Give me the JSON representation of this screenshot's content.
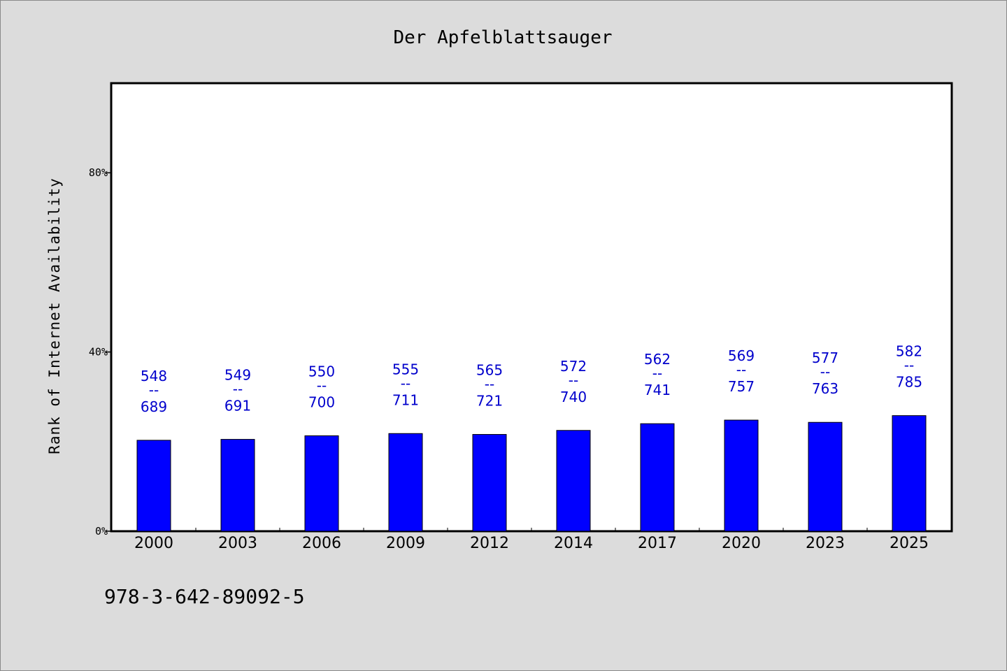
{
  "chart_data": {
    "type": "bar",
    "title": "Der Apfelblattsauger",
    "ylabel": "Rank of Internet Availability",
    "xlabel": "",
    "categories": [
      "2000",
      "2003",
      "2006",
      "2009",
      "2012",
      "2014",
      "2017",
      "2020",
      "2023",
      "2025"
    ],
    "values": [
      20.3,
      20.5,
      21.3,
      21.8,
      21.6,
      22.5,
      24.0,
      24.8,
      24.3,
      25.8
    ],
    "data_labels": [
      [
        "548",
        "689"
      ],
      [
        "549",
        "691"
      ],
      [
        "550",
        "700"
      ],
      [
        "555",
        "711"
      ],
      [
        "565",
        "721"
      ],
      [
        "572",
        "740"
      ],
      [
        "562",
        "741"
      ],
      [
        "569",
        "757"
      ],
      [
        "577",
        "763"
      ],
      [
        "582",
        "785"
      ]
    ],
    "label_separator": "--",
    "yticks": [
      "0%",
      "40%",
      "80%"
    ],
    "ytick_values": [
      0,
      40,
      80
    ],
    "ylim": [
      0,
      100
    ],
    "grid": false,
    "legend": "none",
    "bar_color": "#0000ff",
    "label_color": "#0000cc"
  },
  "footer": {
    "isbn": "978-3-642-89092-5"
  }
}
